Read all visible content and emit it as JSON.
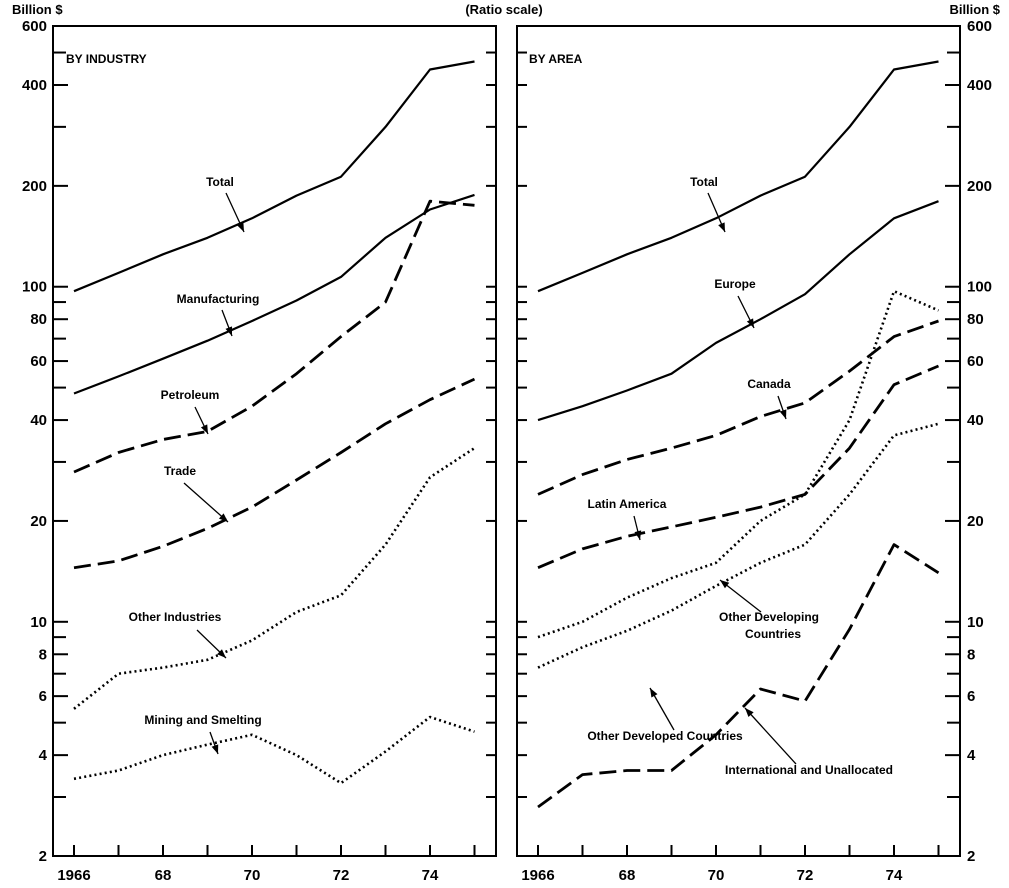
{
  "header": {
    "left_unit": "Billion $",
    "center_note": "(Ratio scale)",
    "right_unit": "Billion $"
  },
  "chart_data": [
    {
      "type": "line",
      "title": "BY INDUSTRY",
      "y_scale": "log",
      "ylim": [
        2,
        600
      ],
      "xlim": [
        1966,
        1975
      ],
      "y_ticks": [
        2,
        4,
        6,
        8,
        10,
        20,
        40,
        60,
        80,
        100,
        200,
        400,
        600
      ],
      "y_tick_labels": [
        "2",
        "4",
        "6",
        "8",
        "10",
        "20",
        "40",
        "60",
        "80",
        "100",
        "200",
        "400",
        "600"
      ],
      "x_ticks": [
        1966,
        1968,
        1970,
        1972,
        1974
      ],
      "x_tick_labels": [
        "1966",
        "68",
        "70",
        "72",
        "74"
      ],
      "x": [
        1966,
        1967,
        1968,
        1969,
        1970,
        1971,
        1972,
        1973,
        1974,
        1975
      ],
      "series": [
        {
          "name": "Total",
          "style": "solid",
          "values": [
            97,
            110,
            125,
            140,
            160,
            187,
            213,
            300,
            445,
            470
          ]
        },
        {
          "name": "Manufacturing",
          "style": "solid",
          "values": [
            48,
            54,
            61,
            69,
            79,
            91,
            107,
            140,
            170,
            188
          ]
        },
        {
          "name": "Petroleum",
          "style": "dashed",
          "values": [
            28,
            32,
            35,
            37,
            44,
            55,
            71,
            90,
            180,
            175
          ]
        },
        {
          "name": "Trade",
          "style": "dashed",
          "values": [
            14.5,
            15.2,
            16.8,
            19,
            22,
            26.5,
            32,
            39,
            46,
            53
          ]
        },
        {
          "name": "Other Industries",
          "style": "dotted",
          "values": [
            5.5,
            7,
            7.3,
            7.7,
            8.8,
            10.7,
            12,
            17,
            27,
            33
          ]
        },
        {
          "name": "Mining and Smelting",
          "style": "dotted",
          "values": [
            3.4,
            3.6,
            4,
            4.3,
            4.6,
            4,
            3.3,
            4.1,
            5.2,
            4.7
          ]
        }
      ]
    },
    {
      "type": "line",
      "title": "BY AREA",
      "y_scale": "log",
      "ylim": [
        2,
        600
      ],
      "xlim": [
        1966,
        1975
      ],
      "y_ticks": [
        2,
        4,
        6,
        8,
        10,
        20,
        40,
        60,
        80,
        100,
        200,
        400,
        600
      ],
      "y_tick_labels": [
        "2",
        "4",
        "6",
        "8",
        "10",
        "20",
        "40",
        "60",
        "80",
        "100",
        "200",
        "400",
        "600"
      ],
      "x_ticks": [
        1966,
        1968,
        1970,
        1972,
        1974
      ],
      "x_tick_labels": [
        "1966",
        "68",
        "70",
        "72",
        "74"
      ],
      "x": [
        1966,
        1967,
        1968,
        1969,
        1970,
        1971,
        1972,
        1973,
        1974,
        1975
      ],
      "series": [
        {
          "name": "Total",
          "style": "solid",
          "values": [
            97,
            110,
            125,
            140,
            160,
            187,
            213,
            300,
            445,
            470
          ]
        },
        {
          "name": "Europe",
          "style": "solid",
          "values": [
            40,
            44,
            49,
            55,
            68,
            80,
            95,
            125,
            160,
            180
          ]
        },
        {
          "name": "Canada",
          "style": "dashed",
          "values": [
            24,
            27.5,
            30.5,
            33,
            36,
            41,
            45,
            56,
            71,
            79
          ]
        },
        {
          "name": "Latin America",
          "style": "dashed",
          "values": [
            14.5,
            16.5,
            18,
            19.2,
            20.5,
            22,
            24,
            33,
            51,
            58
          ]
        },
        {
          "name": "Other Developing Countries",
          "style": "dotted",
          "values": [
            9,
            10,
            11.8,
            13.5,
            15,
            20,
            24,
            40,
            97,
            85
          ]
        },
        {
          "name": "Other Developed Countries",
          "style": "dotted",
          "values": [
            7.3,
            8.4,
            9.4,
            10.8,
            12.8,
            15,
            17,
            24,
            36,
            39
          ]
        },
        {
          "name": "International and Unallocated",
          "style": "dashed",
          "values": [
            2.8,
            3.5,
            3.6,
            3.6,
            4.6,
            6.3,
            5.8,
            9.5,
            17,
            14
          ]
        }
      ]
    }
  ]
}
